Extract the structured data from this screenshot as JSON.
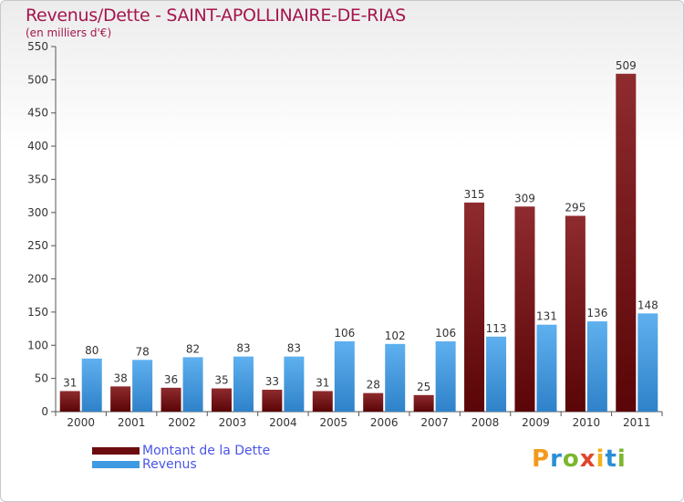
{
  "title": "Revenus/Dette - SAINT-APOLLINAIRE-DE-RIAS",
  "subtitle": "(en milliers d'€)",
  "colors": {
    "title": "#a5154d",
    "dette": "#7a1517",
    "revenus": "#3f9ae2",
    "legend_text": "#4a55e8"
  },
  "legend": [
    {
      "label": "Montant de la Dette",
      "color": "#6b0d10"
    },
    {
      "label": "Revenus",
      "color": "#3f9ae2"
    }
  ],
  "logo": {
    "text": "Proxiti",
    "letters": [
      "P",
      "r",
      "o",
      "x",
      "i",
      "t",
      "i"
    ]
  },
  "chart_data": {
    "type": "bar",
    "title": "Revenus/Dette - SAINT-APOLLINAIRE-DE-RIAS",
    "subtitle": "(en milliers d'€)",
    "categories": [
      "2000",
      "2001",
      "2002",
      "2003",
      "2004",
      "2005",
      "2006",
      "2007",
      "2008",
      "2009",
      "2010",
      "2011"
    ],
    "series": [
      {
        "name": "Montant de la Dette",
        "values": [
          31,
          38,
          36,
          35,
          33,
          31,
          28,
          25,
          315,
          309,
          295,
          509
        ]
      },
      {
        "name": "Revenus",
        "values": [
          80,
          78,
          82,
          83,
          83,
          106,
          102,
          106,
          113,
          131,
          136,
          148
        ]
      }
    ],
    "ylim": [
      0,
      550
    ],
    "yticks": [
      0,
      50,
      100,
      150,
      200,
      250,
      300,
      350,
      400,
      450,
      500,
      550
    ],
    "grid": false,
    "legend_position": "bottom-left"
  }
}
